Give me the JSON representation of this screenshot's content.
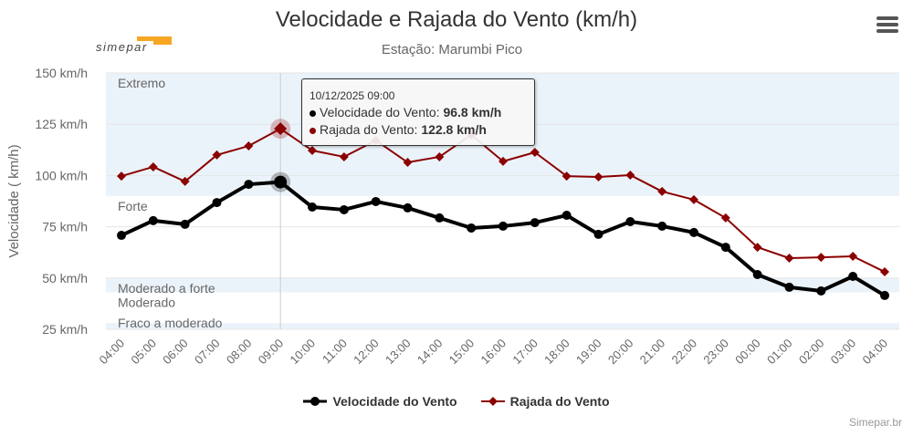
{
  "header": {
    "title": "Velocidade e Rajada do Vento (km/h)",
    "subtitle": "Estação: Marumbi Pico",
    "logo_text": "simepar"
  },
  "credit": "Simepar.br",
  "tooltip": {
    "date": "10/12/2025 09:00",
    "rows": [
      {
        "label": "Velocidade do Vento: ",
        "value": "96.8 km/h",
        "color": "#000000"
      },
      {
        "label": "Rajada do Vento: ",
        "value": "122.8 km/h",
        "color": "#8b0000"
      }
    ]
  },
  "chart_data": {
    "type": "line",
    "title": "Velocidade e Rajada do Vento (km/h)",
    "subtitle": "Estação: Marumbi Pico",
    "ylabel": "Velocidade ( km/h)",
    "xlabel": "",
    "ylim": [
      25,
      150
    ],
    "yticks": [
      25,
      50,
      75,
      100,
      125,
      150
    ],
    "ytick_labels": [
      "25 km/h",
      "50 km/h",
      "75 km/h",
      "100 km/h",
      "125 km/h",
      "150 km/h"
    ],
    "categories": [
      "04:00",
      "05:00",
      "06:00",
      "07:00",
      "08:00",
      "09:00",
      "10:00",
      "11:00",
      "12:00",
      "13:00",
      "14:00",
      "15:00",
      "16:00",
      "17:00",
      "18:00",
      "19:00",
      "20:00",
      "21:00",
      "22:00",
      "23:00",
      "00:00",
      "01:00",
      "02:00",
      "03:00",
      "04:00"
    ],
    "highlight_index": 5,
    "plot_bands": [
      {
        "label": "Extremo",
        "from": 90,
        "to": 150,
        "color": "#ebf3fa"
      },
      {
        "label": "Forte",
        "from": 50,
        "to": 90,
        "color": "#ffffff"
      },
      {
        "label": "Moderado a forte",
        "from": 43,
        "to": 50,
        "color": "#ebf3fa"
      },
      {
        "label": "Moderado",
        "from": 28,
        "to": 43,
        "color": "#ffffff"
      },
      {
        "label": "Fraco a moderado",
        "from": 25,
        "to": 28,
        "color": "#ebf3fa"
      }
    ],
    "series": [
      {
        "name": "Velocidade do Vento",
        "color": "#000000",
        "marker": "circle",
        "values": [
          70.8,
          78.0,
          76.2,
          86.8,
          95.7,
          96.8,
          84.6,
          83.3,
          87.3,
          84.2,
          79.3,
          74.4,
          75.3,
          77.0,
          80.6,
          71.3,
          77.5,
          75.3,
          72.2,
          65.0,
          51.7,
          45.5,
          43.7,
          50.8,
          41.5
        ]
      },
      {
        "name": "Rajada do Vento",
        "color": "#8b0000",
        "marker": "diamond",
        "values": [
          99.7,
          104.2,
          97.1,
          110.0,
          114.4,
          122.8,
          112.2,
          109.1,
          117.1,
          106.4,
          109.1,
          119.8,
          106.9,
          111.3,
          99.7,
          99.3,
          100.2,
          92.2,
          88.2,
          79.3,
          65.0,
          59.7,
          60.1,
          60.6,
          53.0
        ]
      }
    ],
    "legend_position": "bottom"
  }
}
